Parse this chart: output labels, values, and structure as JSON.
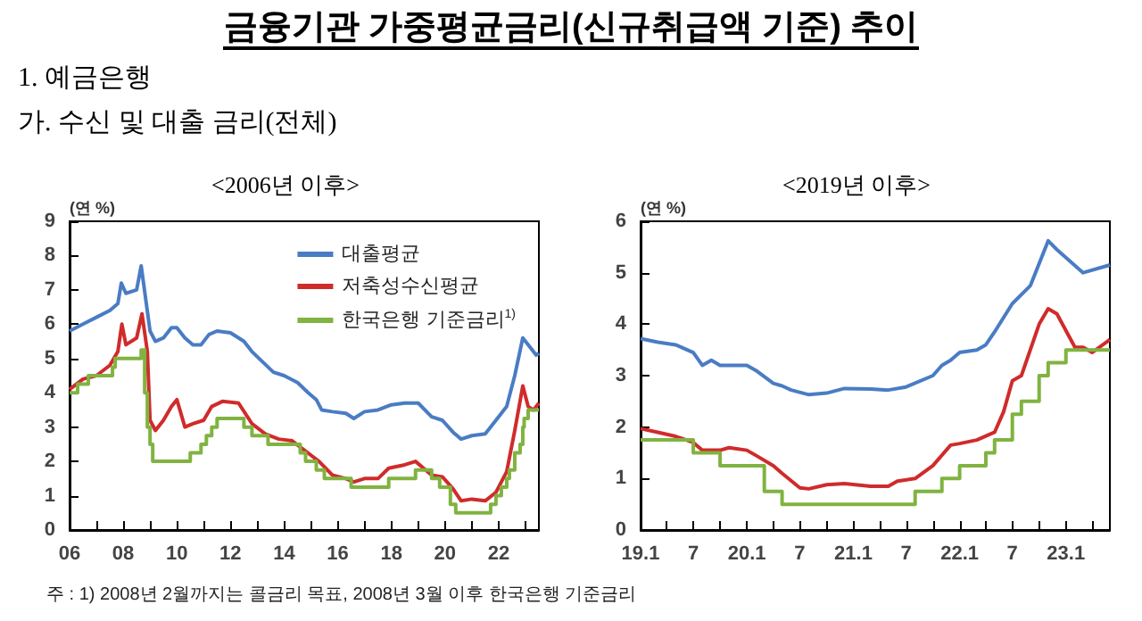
{
  "chart_data": [
    {
      "type": "line",
      "title": "<2006년 이후>",
      "ylabel": "(연 %)",
      "xlim": [
        2006,
        2023.5
      ],
      "ylim": [
        0,
        9
      ],
      "yticks": [
        0,
        1,
        2,
        3,
        4,
        5,
        6,
        7,
        8,
        9
      ],
      "xticks": [
        {
          "value": 2006,
          "label": "06"
        },
        {
          "value": 2007,
          "label": null
        },
        {
          "value": 2008,
          "label": "08"
        },
        {
          "value": 2009,
          "label": null
        },
        {
          "value": 2010,
          "label": "10"
        },
        {
          "value": 2011,
          "label": null
        },
        {
          "value": 2012,
          "label": "12"
        },
        {
          "value": 2013,
          "label": null
        },
        {
          "value": 2014,
          "label": "14"
        },
        {
          "value": 2015,
          "label": null
        },
        {
          "value": 2016,
          "label": "16"
        },
        {
          "value": 2017,
          "label": null
        },
        {
          "value": 2018,
          "label": "18"
        },
        {
          "value": 2019,
          "label": null
        },
        {
          "value": 2020,
          "label": "20"
        },
        {
          "value": 2021,
          "label": null
        },
        {
          "value": 2022,
          "label": "22"
        },
        {
          "value": 2023,
          "label": null
        }
      ],
      "grid": false,
      "legend": "top right",
      "annotations": [
        "금융기관 가중평균금리(신규취급액 기준) 추이",
        "1. 예금은행",
        "가. 수신 및 대출 금리(전체)",
        "주 : 1) 2008년 2월까지는 콜금리 목표, 2008년 3월 이후 한국은행 기준금리"
      ],
      "series": [
        {
          "name": "대출평균",
          "color": "#4a7cc4",
          "x": [
            2006,
            2006.5,
            2007,
            2007.5,
            2007.8,
            2007.93,
            2008.1,
            2008.5,
            2008.67,
            2009,
            2009.2,
            2009.5,
            2009.8,
            2010,
            2010.3,
            2010.6,
            2010.9,
            2011.2,
            2011.5,
            2012,
            2012.5,
            2012.8,
            2013.2,
            2013.6,
            2014,
            2014.5,
            2014.9,
            2015.2,
            2015.4,
            2015.8,
            2016.3,
            2016.6,
            2017,
            2017.5,
            2018,
            2018.5,
            2019,
            2019.5,
            2019.9,
            2020.3,
            2020.6,
            2021,
            2021.5,
            2021.9,
            2022.3,
            2022.6,
            2022.9,
            2023.2,
            2023.4,
            2023.5
          ],
          "values": [
            5.8,
            6,
            6.2,
            6.4,
            6.6,
            7.2,
            6.9,
            7,
            7.7,
            5.8,
            5.5,
            5.6,
            5.9,
            5.9,
            5.6,
            5.4,
            5.4,
            5.7,
            5.8,
            5.75,
            5.5,
            5.2,
            4.9,
            4.6,
            4.5,
            4.3,
            4,
            3.8,
            3.5,
            3.45,
            3.4,
            3.25,
            3.45,
            3.5,
            3.65,
            3.7,
            3.7,
            3.3,
            3.2,
            2.85,
            2.65,
            2.75,
            2.8,
            3.2,
            3.6,
            4.5,
            5.6,
            5.3,
            5.1,
            5.15
          ]
        },
        {
          "name": "저축성수신평균",
          "color": "#d02b2b",
          "x": [
            2006,
            2006.5,
            2007,
            2007.5,
            2007.8,
            2007.95,
            2008.1,
            2008.5,
            2008.7,
            2008.9,
            2009,
            2009.2,
            2009.5,
            2009.8,
            2010,
            2010.3,
            2010.6,
            2011,
            2011.3,
            2011.7,
            2012.3,
            2012.8,
            2013.3,
            2013.8,
            2014.3,
            2014.8,
            2015.3,
            2015.8,
            2016.3,
            2016.6,
            2017,
            2017.5,
            2017.9,
            2018.5,
            2018.9,
            2019.5,
            2019.9,
            2020.3,
            2020.6,
            2021,
            2021.5,
            2021.9,
            2022.3,
            2022.6,
            2022.9,
            2023.1,
            2023.3,
            2023.5
          ],
          "values": [
            4.1,
            4.4,
            4.5,
            4.8,
            5.2,
            6,
            5.4,
            5.6,
            6.3,
            5.2,
            3.2,
            2.9,
            3.2,
            3.6,
            3.8,
            3,
            3.1,
            3.2,
            3.6,
            3.75,
            3.7,
            3.1,
            2.8,
            2.65,
            2.6,
            2.3,
            2,
            1.6,
            1.5,
            1.4,
            1.5,
            1.5,
            1.8,
            1.9,
            2,
            1.6,
            1.55,
            1.2,
            0.85,
            0.9,
            0.85,
            1.1,
            1.7,
            2.9,
            4.2,
            3.6,
            3.5,
            3.7
          ]
        },
        {
          "name": "한국은행 기준금리$^{1)}$",
          "type": "step",
          "color": "#80b341",
          "x": [
            2006,
            2006.3,
            2006.7,
            2007.6,
            2007.7,
            2008.67,
            2008.8,
            2008.9,
            2009,
            2009.1,
            2010.5,
            2010.9,
            2011.1,
            2011.3,
            2011.5,
            2012.5,
            2012.8,
            2013.4,
            2014.6,
            2014.8,
            2015.2,
            2015.5,
            2016.5,
            2017.9,
            2018.9,
            2019.5,
            2019.8,
            2020.2,
            2020.4,
            2021.7,
            2021.9,
            2022.1,
            2022.3,
            2022.4,
            2022.6,
            2022.8,
            2022.9,
            2022.95,
            2023.1,
            2023.5
          ],
          "values": [
            4,
            4.25,
            4.5,
            4.75,
            5,
            5.25,
            4,
            3,
            2.5,
            2,
            2.25,
            2.5,
            2.75,
            3,
            3.25,
            3,
            2.75,
            2.5,
            2.25,
            2,
            1.75,
            1.5,
            1.25,
            1.5,
            1.75,
            1.5,
            1.25,
            0.75,
            0.5,
            0.75,
            1,
            1.25,
            1.5,
            1.75,
            2.25,
            2.5,
            3,
            3.25,
            3.5,
            3.5
          ]
        }
      ]
    },
    {
      "type": "line",
      "title": "<2019년 이후>",
      "ylabel": "(연 %)",
      "xlim": [
        "2019-01",
        "2023-06"
      ],
      "ylim": [
        0,
        6
      ],
      "yticks": [
        0,
        1,
        2,
        3,
        4,
        5,
        6
      ],
      "xticks": [
        {
          "value": "2019-01",
          "label": "19.1"
        },
        {
          "value": "2019-04",
          "label": null
        },
        {
          "value": "2019-07",
          "label": "7"
        },
        {
          "value": "2019-10",
          "label": null
        },
        {
          "value": "2020-01",
          "label": "20.1"
        },
        {
          "value": "2020-04",
          "label": null
        },
        {
          "value": "2020-07",
          "label": "7"
        },
        {
          "value": "2020-10",
          "label": null
        },
        {
          "value": "2021-01",
          "label": "21.1"
        },
        {
          "value": "2021-04",
          "label": null
        },
        {
          "value": "2021-07",
          "label": "7"
        },
        {
          "value": "2021-10",
          "label": null
        },
        {
          "value": "2022-01",
          "label": "22.1"
        },
        {
          "value": "2022-04",
          "label": null
        },
        {
          "value": "2022-07",
          "label": "7"
        },
        {
          "value": "2022-10",
          "label": null
        },
        {
          "value": "2023-01",
          "label": "23.1"
        },
        {
          "value": "2023-04",
          "label": null
        }
      ],
      "grid": false,
      "legend": false,
      "series": [
        {
          "color": "#4a7cc4",
          "x": [
            "2019-01",
            "2019-03",
            "2019-05",
            "2019-07",
            "2019-08",
            "2019-09",
            "2019-10",
            "2020-01",
            "2020-02",
            "2020-04",
            "2020-05",
            "2020-06",
            "2020-08",
            "2020-10",
            "2020-12",
            "2021-03",
            "2021-05",
            "2021-07",
            "2021-10",
            "2021-11",
            "2021-12",
            "2022-01",
            "2022-03",
            "2022-04",
            "2022-05",
            "2022-07",
            "2022-09",
            "2022-11",
            "2022-12",
            "2023-03",
            "2023-06"
          ],
          "values": [
            3.72,
            3.65,
            3.6,
            3.45,
            3.2,
            3.3,
            3.2,
            3.2,
            3.1,
            2.85,
            2.8,
            2.72,
            2.63,
            2.66,
            2.75,
            2.74,
            2.72,
            2.78,
            3,
            3.2,
            3.3,
            3.45,
            3.5,
            3.6,
            3.85,
            4.4,
            4.75,
            5.62,
            5.45,
            5,
            5.15
          ]
        },
        {
          "color": "#d02b2b",
          "x": [
            "2019-01",
            "2019-03",
            "2019-05",
            "2019-07",
            "2019-08",
            "2019-10",
            "2019-11",
            "2020-01",
            "2020-02",
            "2020-04",
            "2020-05",
            "2020-07",
            "2020-08",
            "2020-10",
            "2020-12",
            "2021-03",
            "2021-05",
            "2021-06",
            "2021-08",
            "2021-10",
            "2021-12",
            "2022-01",
            "2022-03",
            "2022-05",
            "2022-06",
            "2022-07",
            "2022-08",
            "2022-10",
            "2022-11",
            "2022-12",
            "2023-02",
            "2023-03",
            "2023-04",
            "2023-06"
          ],
          "values": [
            1.97,
            1.9,
            1.82,
            1.7,
            1.55,
            1.55,
            1.6,
            1.55,
            1.45,
            1.25,
            1.1,
            0.82,
            0.8,
            0.88,
            0.9,
            0.85,
            0.85,
            0.95,
            1,
            1.25,
            1.65,
            1.68,
            1.75,
            1.9,
            2.3,
            2.9,
            3,
            4,
            4.3,
            4.2,
            3.55,
            3.55,
            3.45,
            3.7
          ]
        },
        {
          "type": "step",
          "color": "#80b341",
          "x": [
            "2019-01",
            "2019-07",
            "2019-10",
            "2020-03",
            "2020-05",
            "2021-08",
            "2021-11",
            "2022-01",
            "2022-04",
            "2022-05",
            "2022-07",
            "2022-08",
            "2022-10",
            "2022-11",
            "2023-01",
            "2023-06"
          ],
          "values": [
            1.75,
            1.5,
            1.25,
            0.75,
            0.5,
            0.75,
            1,
            1.25,
            1.5,
            1.75,
            2.25,
            2.5,
            3,
            3.25,
            3.5,
            3.5
          ]
        }
      ]
    }
  ]
}
